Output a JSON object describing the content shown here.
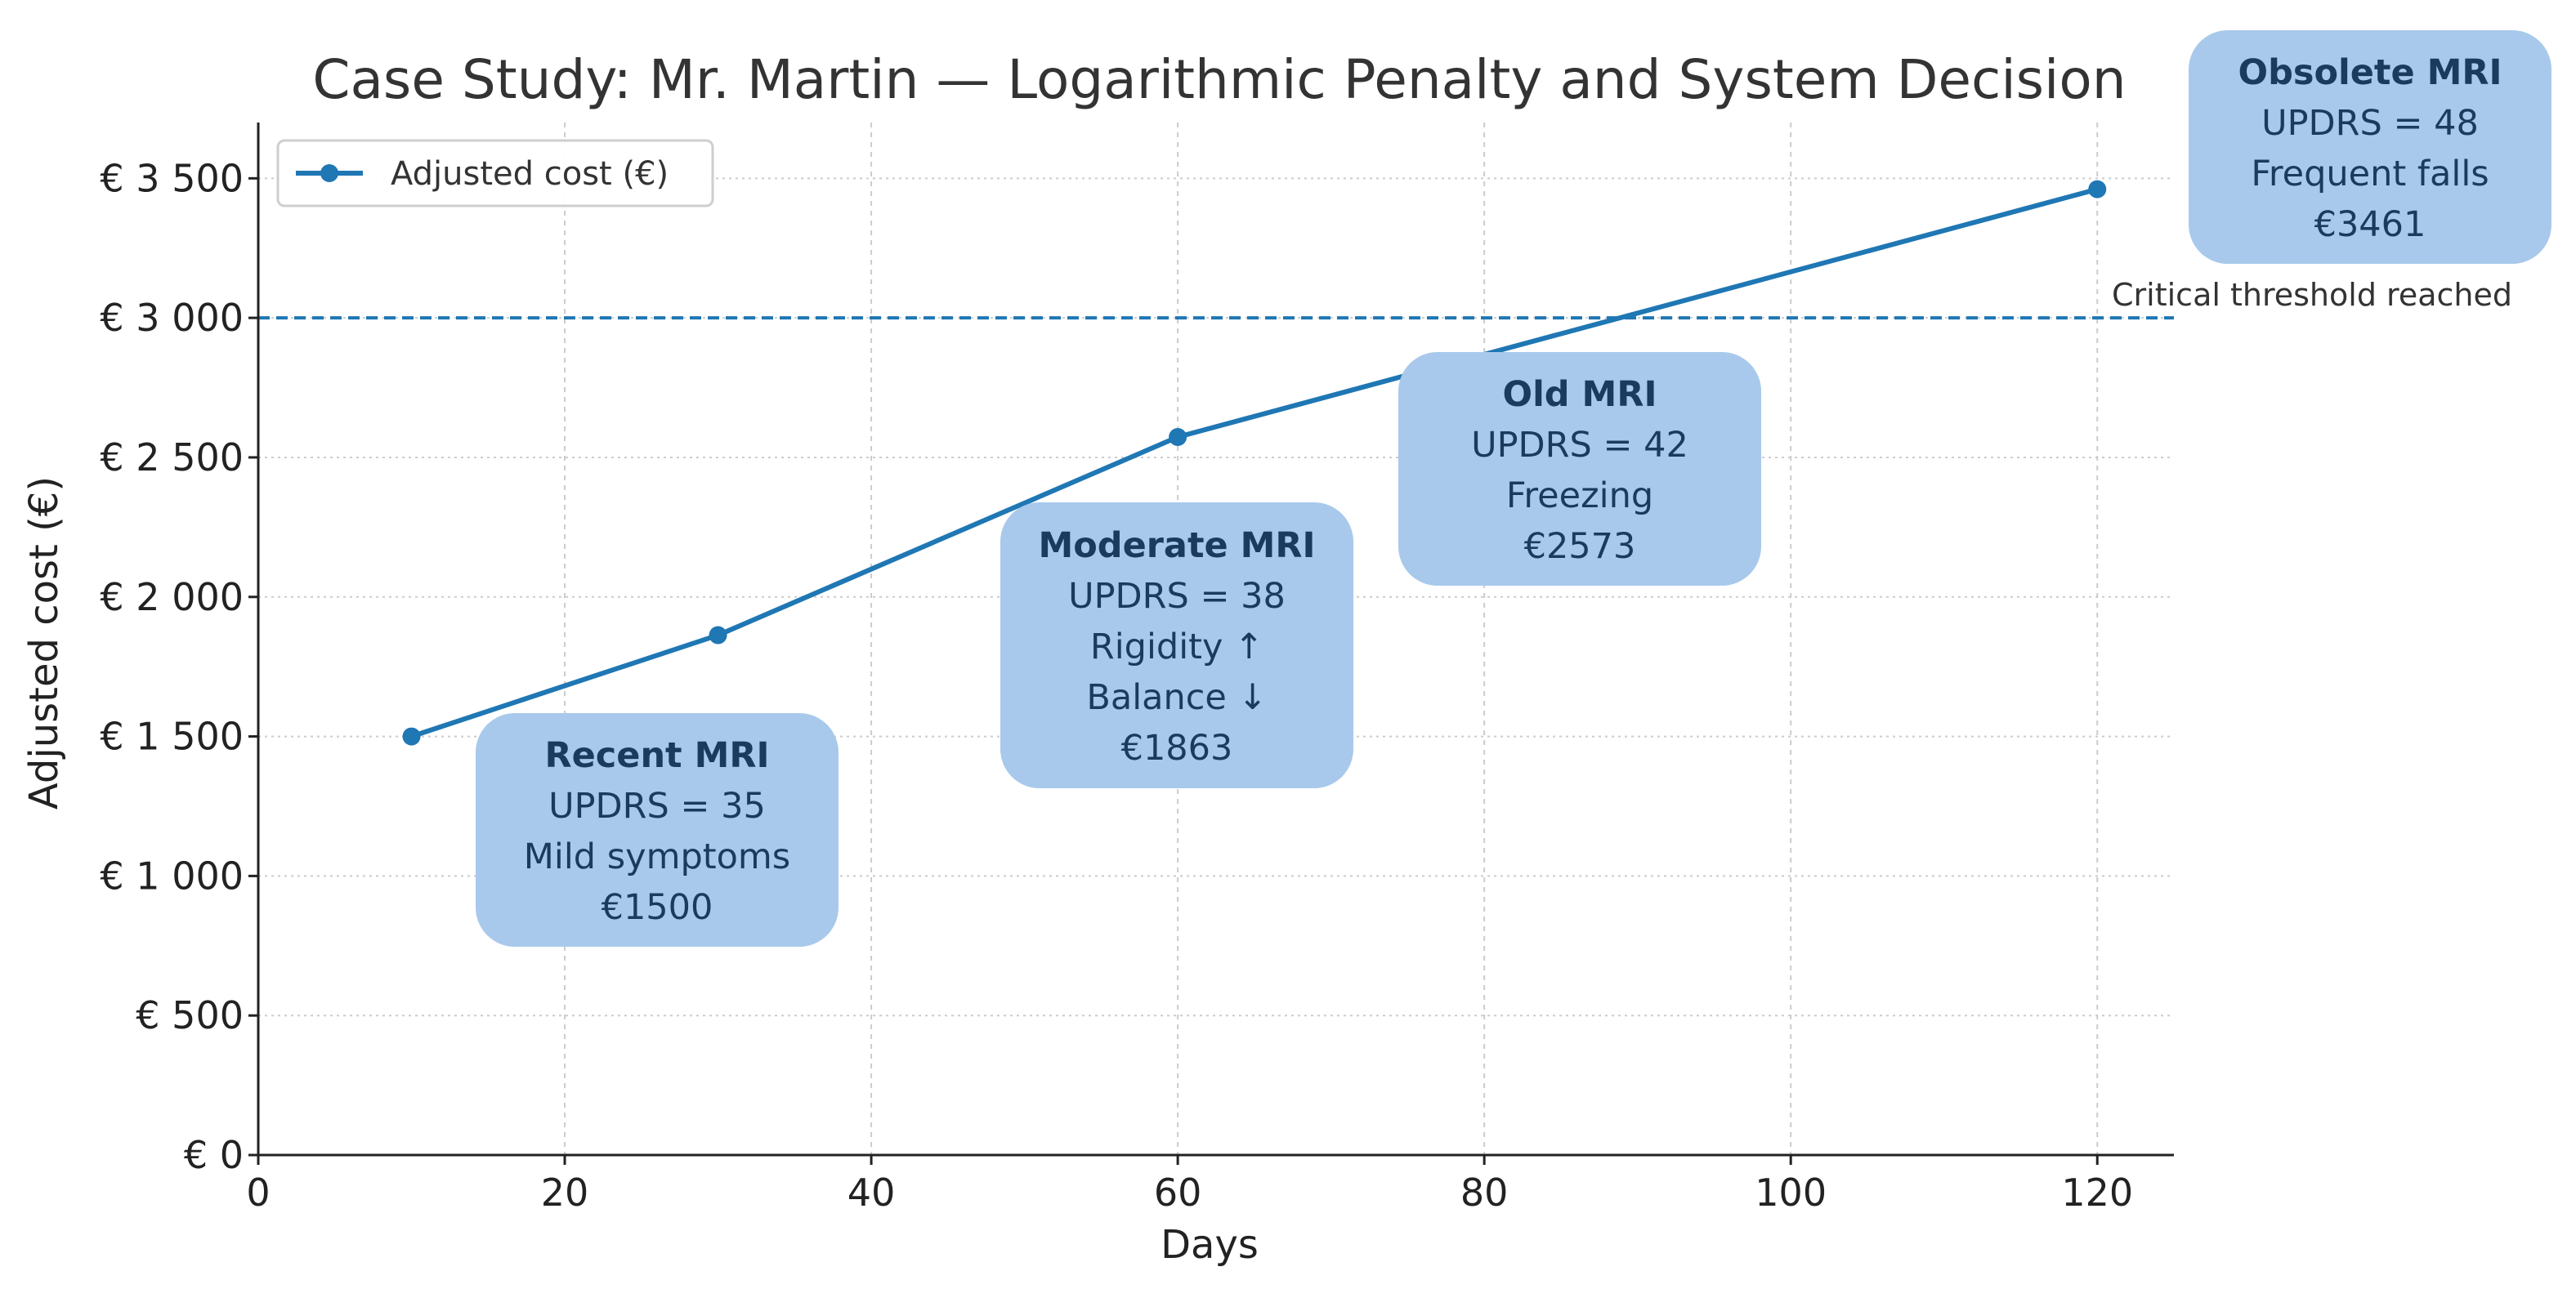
{
  "chart_data": {
    "type": "line",
    "title": "Case Study: Mr. Martin — Logarithmic Penalty and System Decision",
    "xlabel": "Days",
    "ylabel": "Adjusted cost (€)",
    "xlim": [
      0,
      125
    ],
    "ylim": [
      0,
      3700
    ],
    "x_ticks": [
      0,
      20,
      40,
      60,
      80,
      100,
      120
    ],
    "y_ticks": [
      0,
      500,
      1000,
      1500,
      2000,
      2500,
      3000,
      3500
    ],
    "y_tick_labels": [
      "€ 0",
      "€ 500",
      "€ 1 000",
      "€ 1 500",
      "€ 2 000",
      "€ 2 500",
      "€ 3 000",
      "€ 3 500"
    ],
    "grid": true,
    "legend_position": "top-left",
    "series": [
      {
        "name": "Adjusted cost (€)",
        "color": "#1f77b4",
        "x": [
          10,
          30,
          60,
          120
        ],
        "values": [
          1500,
          1863,
          2573,
          3461
        ]
      }
    ],
    "threshold": {
      "value": 3000,
      "label": "Critical threshold reached",
      "color": "#1f77b4"
    },
    "annotations": [
      {
        "title": "Recent MRI",
        "lines": [
          "UPDRS = 35",
          "Mild symptoms",
          "€1500"
        ]
      },
      {
        "title": "Moderate MRI",
        "lines": [
          "UPDRS = 38",
          "Rigidity ↑",
          "Balance ↓",
          "€1863"
        ]
      },
      {
        "title": "Old MRI",
        "lines": [
          "UPDRS = 42",
          "Freezing",
          "€2573"
        ]
      },
      {
        "title": "Obsolete MRI",
        "lines": [
          "UPDRS = 48",
          "Frequent falls",
          "€3461"
        ]
      }
    ],
    "colors": {
      "box_fill": "#a8c9eb",
      "box_text": "#1a3a5e",
      "grid": "#cccccc",
      "axis": "#222222",
      "title": "#333333"
    }
  }
}
